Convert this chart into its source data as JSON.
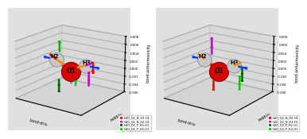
{
  "legend_left": [
    {
      "label": "H2O_Q1_N_H2-O1",
      "color": "#ff0000"
    },
    {
      "label": "H2O_Q1_N_H3-O1",
      "color": "#cc00cc"
    },
    {
      "label": "H2O_Q1_P_H2-O1",
      "color": "#006600"
    },
    {
      "label": "H2O_Q1_P_H3-O1",
      "color": "#00cc00"
    }
  ],
  "legend_right": [
    {
      "label": "H2O_Q2_N_H2-O1",
      "color": "#ff0000"
    },
    {
      "label": "H2O_Q2_N_H3-O1",
      "color": "#cc00cc"
    },
    {
      "label": "H2O_Q2_P_H2-O1",
      "color": "#006600"
    },
    {
      "label": "H2O_Q2_P_H3-O1",
      "color": "#00cc00"
    }
  ],
  "ylabel": "bond-anharmonicity",
  "xlabel": "bond-driv",
  "zlabel": "raddriv",
  "elev": 18,
  "azim": -55,
  "xlim": [
    -2.0,
    2.0
  ],
  "ylim": [
    -1.5,
    1.5
  ],
  "zlim": [
    -1.5,
    2.0
  ],
  "zticks": [
    -0.006,
    -0.004,
    -0.002,
    0.0,
    0.002,
    0.004,
    0.006,
    0.008
  ],
  "zscale": 250.0
}
